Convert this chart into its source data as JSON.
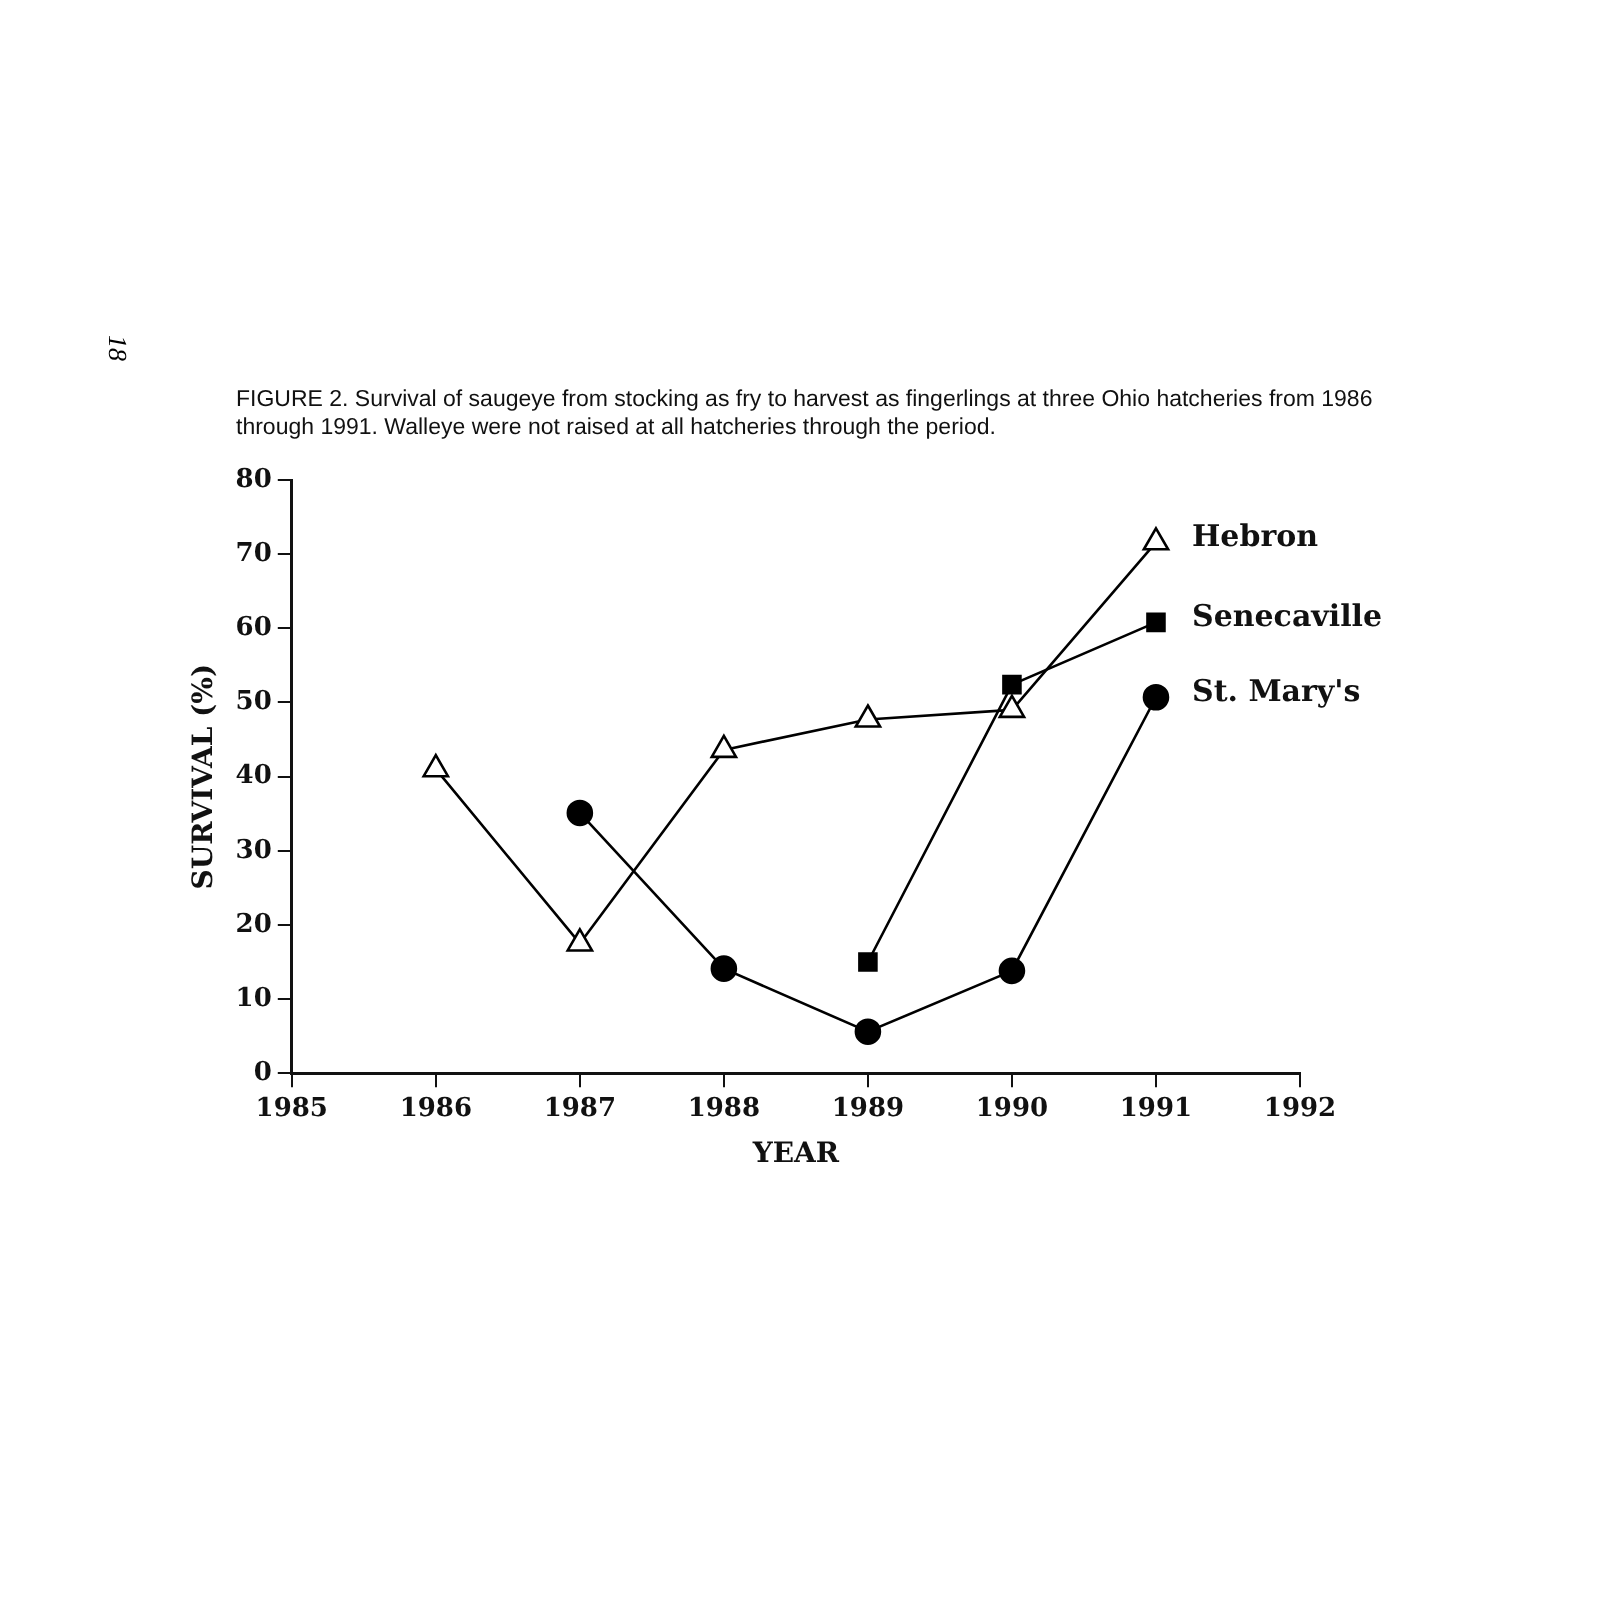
{
  "chart_data": {
    "type": "line",
    "title": "FIGURE 2. Survival of saugeye from stocking as fry to harvest as fingerlings at three Ohio hatcheries from 1986 through 1991. Walleye were not raised at all hatcheries through the period.",
    "xlabel": "YEAR",
    "ylabel": "SURVIVAL (%)",
    "annotations": [
      "18"
    ],
    "xlim": [
      1985,
      1992
    ],
    "xticks": [
      1985,
      1986,
      1987,
      1988,
      1989,
      1990,
      1991,
      1992
    ],
    "ylim": [
      0,
      80
    ],
    "yticks": [
      0,
      10,
      20,
      30,
      40,
      50,
      60,
      70,
      80
    ],
    "grid": false,
    "line_style": "solid",
    "series": [
      {
        "name": "Hebron",
        "color": "#000000",
        "marker": "triangle",
        "x": [
          1986,
          1987,
          1988,
          1989,
          1990,
          1991
        ],
        "values": [
          41,
          17.5,
          43.6,
          47.7,
          49,
          71.6
        ]
      },
      {
        "name": "Senecaville",
        "color": "#000000",
        "marker": "square",
        "x": [
          1989,
          1990,
          1991
        ],
        "values": [
          15,
          52.4,
          60.8
        ]
      },
      {
        "name": "St. Mary's",
        "color": "#000000",
        "marker": "circle",
        "x": [
          1987,
          1988,
          1989,
          1990,
          1991
        ],
        "values": [
          35.1,
          14.1,
          5.6,
          13.8,
          50.7
        ]
      }
    ]
  }
}
